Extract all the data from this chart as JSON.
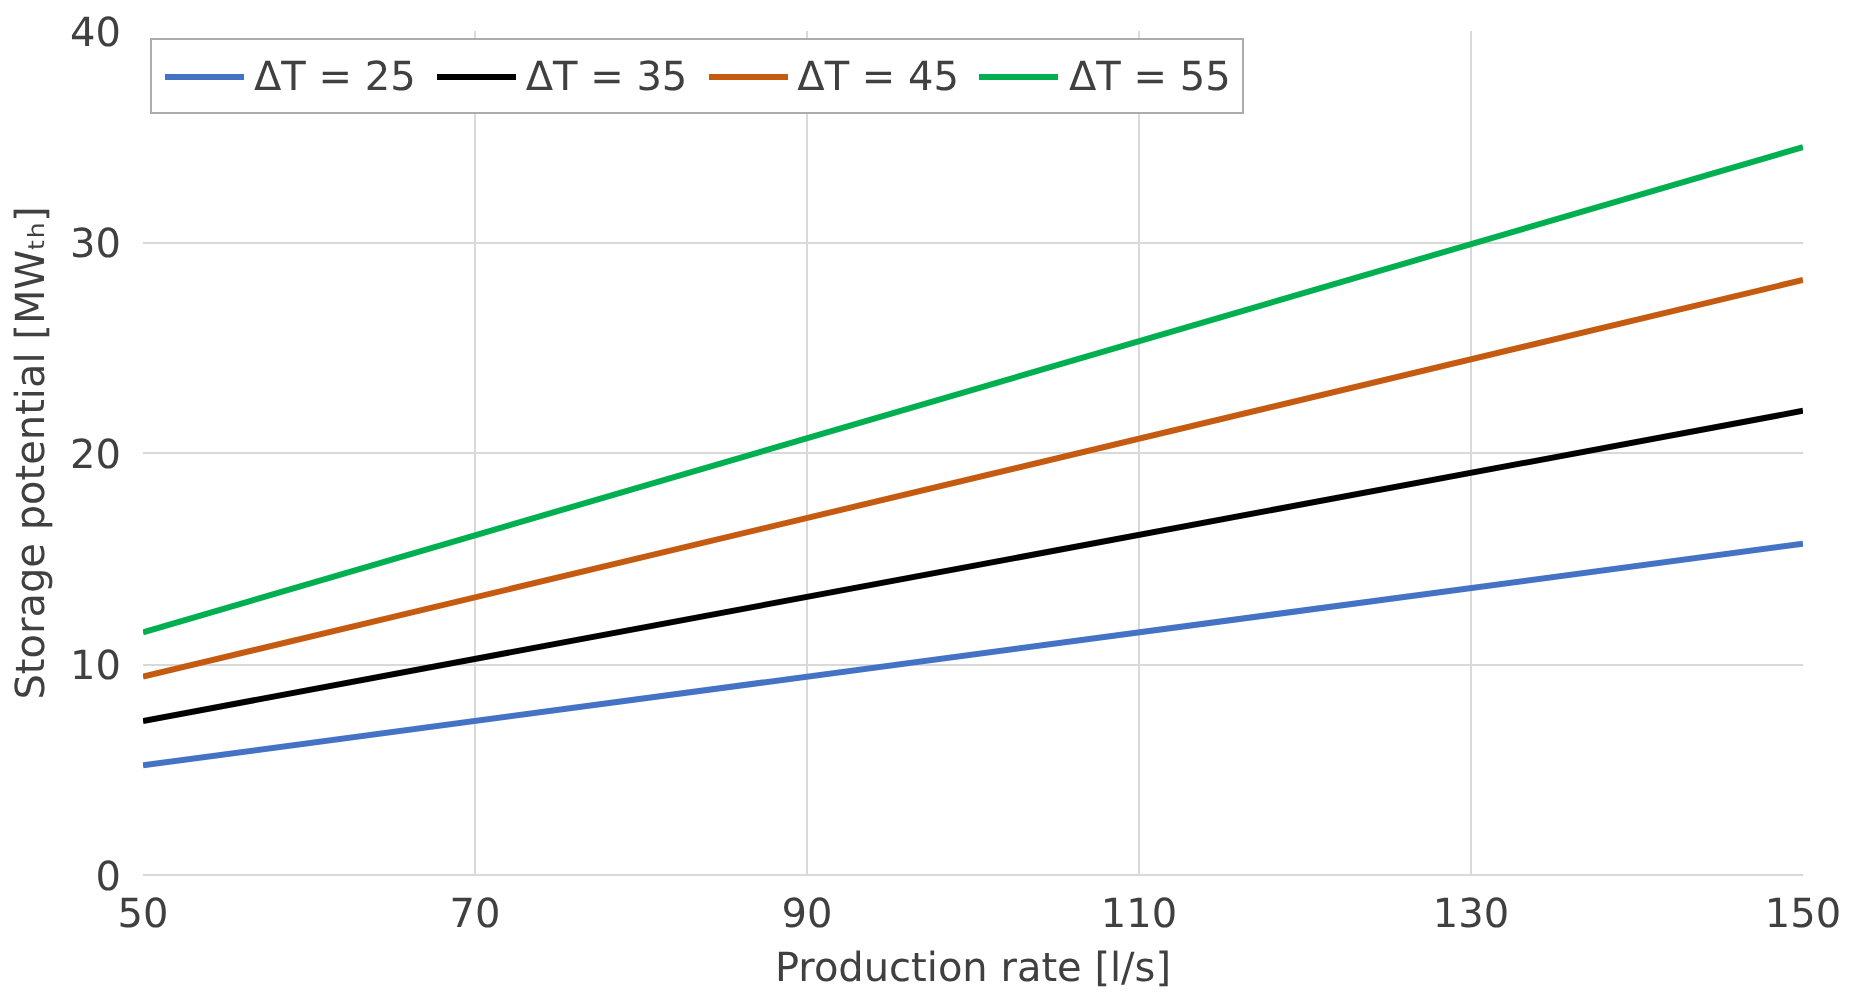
{
  "chart_data": {
    "type": "line",
    "xlabel": "Production rate [l/s]",
    "ylabel": "Storage potential [MWₜₕ]",
    "x": [
      50,
      150
    ],
    "series": [
      {
        "name": "ΔT = 25",
        "color": "#4472c4",
        "values": [
          5.2,
          15.7
        ]
      },
      {
        "name": "ΔT = 35",
        "color": "#000000",
        "values": [
          7.3,
          22.0
        ]
      },
      {
        "name": "ΔT = 45",
        "color": "#c55a11",
        "values": [
          9.4,
          28.2
        ]
      },
      {
        "name": "ΔT = 55",
        "color": "#00b050",
        "values": [
          11.5,
          34.5
        ]
      }
    ],
    "xlim": [
      50,
      150
    ],
    "xticks": [
      50,
      70,
      90,
      110,
      130,
      150
    ],
    "ylim": [
      0,
      40
    ],
    "yticks": [
      0,
      10,
      20,
      30,
      40
    ],
    "grid": true,
    "legend": "top",
    "marker": "none",
    "line_style": "solid"
  }
}
